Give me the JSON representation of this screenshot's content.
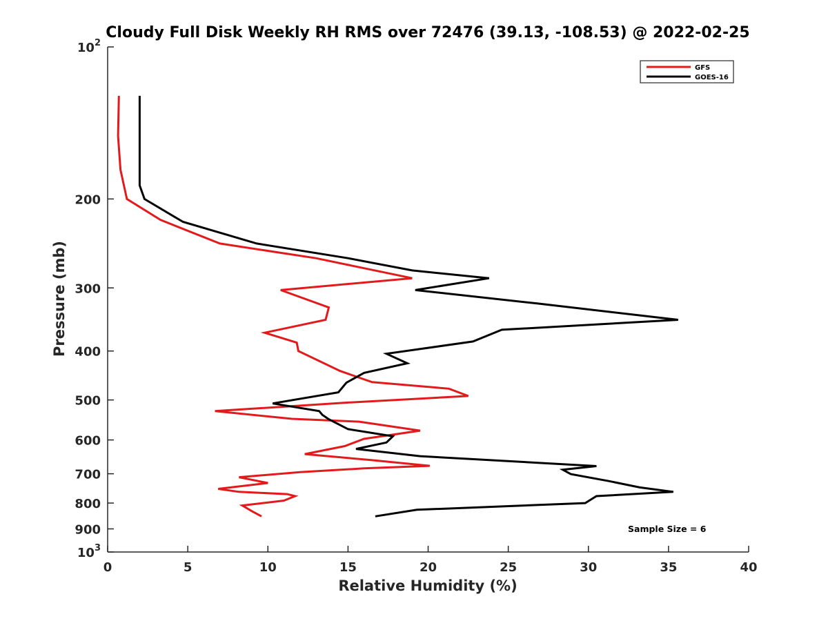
{
  "chart_data": {
    "type": "line",
    "title": "Cloudy Full Disk Weekly RH RMS over 72476 (39.13, -108.53) @ 2022-02-25",
    "xlabel": "Relative Humidity (%)",
    "ylabel": "Pressure (mb)",
    "xlim": [
      0,
      40
    ],
    "ylim": [
      100,
      1000
    ],
    "y_scale": "log",
    "y_reversed": true,
    "grid": false,
    "legend_position": "top-right",
    "x_ticks": [
      "0",
      "5",
      "10",
      "15",
      "20",
      "25",
      "30",
      "35",
      "40"
    ],
    "y_ticks": [
      {
        "value": 100,
        "base": "10",
        "exp": "2"
      },
      {
        "value": 200,
        "label": "200"
      },
      {
        "value": 300,
        "label": "300"
      },
      {
        "value": 400,
        "label": "400"
      },
      {
        "value": 500,
        "label": "500"
      },
      {
        "value": 600,
        "label": "600"
      },
      {
        "value": 700,
        "label": "700"
      },
      {
        "value": 800,
        "label": "800"
      },
      {
        "value": 900,
        "label": "900"
      },
      {
        "value": 1000,
        "base": "10",
        "exp": "3"
      }
    ],
    "series": [
      {
        "name": "GFS",
        "color": "#e31a1c",
        "points": [
          [
            0.7,
            125
          ],
          [
            0.65,
            150
          ],
          [
            0.8,
            175
          ],
          [
            1.2,
            200
          ],
          [
            3.3,
            220
          ],
          [
            7.0,
            245
          ],
          [
            13.0,
            262
          ],
          [
            19.0,
            287
          ],
          [
            10.8,
            303
          ],
          [
            13.8,
            328
          ],
          [
            13.6,
            347
          ],
          [
            9.8,
            368
          ],
          [
            11.8,
            385
          ],
          [
            11.9,
            400
          ],
          [
            14.5,
            438
          ],
          [
            16.5,
            461
          ],
          [
            21.3,
            475
          ],
          [
            22.5,
            491
          ],
          [
            15.0,
            506
          ],
          [
            6.7,
            526
          ],
          [
            11.5,
            545
          ],
          [
            15.7,
            552
          ],
          [
            19.5,
            575
          ],
          [
            16.0,
            597
          ],
          [
            14.8,
            617
          ],
          [
            12.3,
            640
          ],
          [
            16.5,
            658
          ],
          [
            20.1,
            675
          ],
          [
            16.0,
            683
          ],
          [
            12.0,
            695
          ],
          [
            8.2,
            711
          ],
          [
            10.0,
            730
          ],
          [
            6.9,
            750
          ],
          [
            8.2,
            760
          ],
          [
            11.2,
            768
          ],
          [
            11.7,
            775
          ],
          [
            11.0,
            791
          ],
          [
            8.4,
            809
          ],
          [
            9.0,
            830
          ],
          [
            9.6,
            850
          ]
        ]
      },
      {
        "name": "GOES-16",
        "color": "#000000",
        "points": [
          [
            2.0,
            125
          ],
          [
            2.0,
            150
          ],
          [
            2.0,
            175
          ],
          [
            2.0,
            188
          ],
          [
            2.3,
            200
          ],
          [
            4.7,
            222
          ],
          [
            9.3,
            245
          ],
          [
            15.0,
            262
          ],
          [
            19.0,
            277
          ],
          [
            23.8,
            287
          ],
          [
            19.2,
            303
          ],
          [
            26.8,
            322
          ],
          [
            35.6,
            347
          ],
          [
            24.6,
            363
          ],
          [
            22.8,
            383
          ],
          [
            17.4,
            405
          ],
          [
            18.7,
            423
          ],
          [
            16.0,
            442
          ],
          [
            14.9,
            462
          ],
          [
            14.4,
            483
          ],
          [
            10.3,
            508
          ],
          [
            13.2,
            526
          ],
          [
            13.4,
            535
          ],
          [
            13.8,
            546
          ],
          [
            15.0,
            571
          ],
          [
            17.8,
            590
          ],
          [
            17.4,
            607
          ],
          [
            15.5,
            625
          ],
          [
            19.5,
            646
          ],
          [
            30.5,
            676
          ],
          [
            28.4,
            687
          ],
          [
            28.9,
            701
          ],
          [
            31.3,
            724
          ],
          [
            33.2,
            745
          ],
          [
            35.3,
            760
          ],
          [
            30.5,
            775
          ],
          [
            29.8,
            800
          ],
          [
            19.3,
            825
          ],
          [
            16.7,
            850
          ]
        ]
      }
    ],
    "annotation": "Sample Size = 6"
  }
}
